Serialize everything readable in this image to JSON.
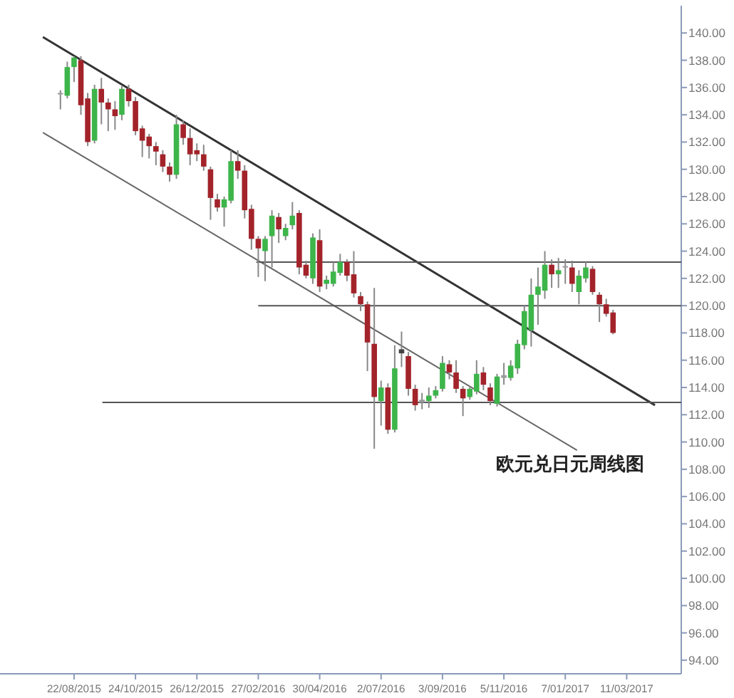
{
  "chart_data": {
    "type": "candlestick",
    "annotations": [
      "欧元兑日元周线图"
    ],
    "x": [
      "2015-08-08",
      "2015-08-15",
      "2015-08-22",
      "2015-08-29",
      "2015-09-05",
      "2015-09-12",
      "2015-09-19",
      "2015-09-26",
      "2015-10-03",
      "2015-10-10",
      "2015-10-17",
      "2015-10-24",
      "2015-10-31",
      "2015-11-07",
      "2015-11-14",
      "2015-11-21",
      "2015-11-28",
      "2015-12-05",
      "2015-12-12",
      "2015-12-19",
      "2015-12-26",
      "2016-01-02",
      "2016-01-09",
      "2016-01-16",
      "2016-01-23",
      "2016-01-30",
      "2016-02-06",
      "2016-02-13",
      "2016-02-20",
      "2016-02-27",
      "2016-03-05",
      "2016-03-12",
      "2016-03-19",
      "2016-03-26",
      "2016-04-02",
      "2016-04-09",
      "2016-04-16",
      "2016-04-23",
      "2016-04-30",
      "2016-05-07",
      "2016-05-14",
      "2016-05-21",
      "2016-05-28",
      "2016-06-04",
      "2016-06-11",
      "2016-06-18",
      "2016-06-25",
      "2016-07-02",
      "2016-07-09",
      "2016-07-16",
      "2016-07-23",
      "2016-07-30",
      "2016-08-06",
      "2016-08-13",
      "2016-08-20",
      "2016-08-27",
      "2016-09-03",
      "2016-09-10",
      "2016-09-17",
      "2016-09-24",
      "2016-10-01",
      "2016-10-08",
      "2016-10-15",
      "2016-10-22",
      "2016-10-29",
      "2016-11-05",
      "2016-11-12",
      "2016-11-19",
      "2016-11-26",
      "2016-12-03",
      "2016-12-10",
      "2016-12-17",
      "2016-12-24",
      "2016-12-31",
      "2017-01-07",
      "2017-01-14",
      "2017-01-21",
      "2017-01-28",
      "2017-02-04",
      "2017-02-11",
      "2017-02-18",
      "2017-02-25"
    ],
    "ohlc": [
      [
        135.5,
        135.8,
        134.4,
        135.6
      ],
      [
        135.4,
        137.9,
        135.2,
        137.5
      ],
      [
        137.5,
        138.3,
        136.4,
        138.2
      ],
      [
        138.0,
        138.3,
        134.0,
        134.7
      ],
      [
        135.2,
        135.6,
        131.7,
        132.0
      ],
      [
        132.1,
        136.2,
        131.9,
        135.9
      ],
      [
        135.9,
        136.7,
        133.3,
        134.9
      ],
      [
        134.9,
        135.2,
        132.8,
        134.4
      ],
      [
        134.4,
        135.0,
        132.9,
        133.9
      ],
      [
        134.0,
        136.1,
        133.6,
        135.9
      ],
      [
        135.9,
        136.2,
        134.6,
        135.0
      ],
      [
        135.0,
        135.3,
        132.5,
        132.8
      ],
      [
        133.0,
        133.2,
        130.9,
        132.1
      ],
      [
        132.4,
        132.6,
        130.8,
        131.7
      ],
      [
        131.7,
        132.0,
        130.3,
        131.3
      ],
      [
        131.1,
        131.4,
        129.8,
        130.2
      ],
      [
        130.2,
        130.5,
        129.1,
        129.6
      ],
      [
        129.6,
        134.0,
        129.3,
        133.3
      ],
      [
        133.3,
        133.6,
        131.8,
        132.3
      ],
      [
        132.3,
        133.0,
        130.3,
        131.1
      ],
      [
        131.4,
        131.9,
        130.6,
        131.1
      ],
      [
        131.1,
        131.8,
        129.9,
        130.2
      ],
      [
        130.0,
        130.2,
        126.3,
        127.9
      ],
      [
        127.8,
        128.2,
        126.9,
        127.2
      ],
      [
        127.2,
        128.0,
        125.8,
        127.8
      ],
      [
        127.7,
        131.4,
        127.5,
        130.6
      ],
      [
        130.6,
        131.4,
        129.3,
        129.9
      ],
      [
        129.9,
        130.3,
        126.4,
        127.0
      ],
      [
        127.1,
        127.4,
        124.1,
        124.9
      ],
      [
        124.9,
        125.1,
        122.1,
        124.2
      ],
      [
        124.0,
        125.1,
        121.8,
        124.9
      ],
      [
        125.1,
        127.0,
        122.8,
        126.6
      ],
      [
        126.5,
        126.8,
        124.6,
        125.6
      ],
      [
        125.1,
        126.0,
        124.8,
        125.7
      ],
      [
        125.9,
        127.6,
        125.6,
        126.6
      ],
      [
        126.8,
        127.0,
        122.3,
        122.8
      ],
      [
        123.0,
        123.3,
        122.0,
        122.2
      ],
      [
        122.0,
        125.3,
        121.6,
        125.0
      ],
      [
        124.8,
        125.6,
        121.0,
        121.4
      ],
      [
        121.6,
        122.2,
        121.2,
        121.9
      ],
      [
        121.6,
        123.2,
        121.4,
        122.5
      ],
      [
        122.4,
        123.8,
        122.2,
        123.2
      ],
      [
        123.2,
        123.4,
        121.8,
        122.2
      ],
      [
        122.3,
        124.0,
        120.6,
        120.9
      ],
      [
        120.7,
        121.0,
        119.6,
        120.1
      ],
      [
        120.1,
        120.3,
        115.2,
        117.3
      ],
      [
        117.2,
        121.3,
        109.5,
        113.3
      ],
      [
        113.0,
        114.5,
        111.2,
        114.0
      ],
      [
        114.0,
        114.3,
        110.6,
        110.9
      ],
      [
        110.9,
        117.1,
        110.7,
        115.4
      ],
      [
        116.8,
        118.1,
        115.5,
        116.5
      ],
      [
        116.3,
        116.6,
        113.4,
        113.9
      ],
      [
        113.9,
        114.2,
        112.3,
        112.7
      ],
      [
        112.9,
        113.6,
        112.4,
        113.1
      ],
      [
        113.0,
        114.0,
        112.5,
        113.4
      ],
      [
        113.4,
        114.1,
        113.2,
        113.8
      ],
      [
        113.9,
        116.3,
        113.7,
        115.8
      ],
      [
        115.7,
        116.0,
        114.6,
        115.1
      ],
      [
        115.1,
        116.0,
        113.6,
        113.9
      ],
      [
        113.9,
        114.1,
        111.9,
        113.2
      ],
      [
        113.3,
        114.0,
        113.1,
        113.9
      ],
      [
        113.7,
        116.0,
        113.5,
        115.0
      ],
      [
        115.1,
        115.5,
        113.8,
        114.2
      ],
      [
        114.0,
        114.3,
        112.7,
        113.0
      ],
      [
        112.8,
        115.0,
        112.6,
        114.8
      ],
      [
        114.7,
        115.8,
        114.2,
        114.9
      ],
      [
        114.7,
        116.0,
        114.5,
        115.6
      ],
      [
        115.4,
        117.5,
        115.0,
        117.2
      ],
      [
        117.1,
        120.0,
        116.8,
        119.6
      ],
      [
        118.2,
        122.0,
        117.0,
        120.8
      ],
      [
        120.8,
        122.8,
        118.6,
        121.4
      ],
      [
        121.1,
        124.0,
        120.5,
        123.0
      ],
      [
        123.0,
        123.4,
        121.3,
        122.3
      ],
      [
        122.3,
        123.5,
        121.3,
        122.6
      ],
      [
        122.8,
        123.4,
        121.6,
        122.9
      ],
      [
        122.8,
        123.3,
        121.0,
        121.6
      ],
      [
        121.0,
        122.6,
        120.1,
        122.2
      ],
      [
        122.0,
        123.2,
        121.7,
        122.8
      ],
      [
        122.7,
        122.9,
        120.8,
        121.0
      ],
      [
        120.8,
        121.0,
        118.8,
        120.1
      ],
      [
        120.1,
        120.5,
        119.2,
        119.4
      ],
      [
        119.5,
        119.7,
        117.9,
        118.0
      ]
    ],
    "colors": [
      "#9a9a9a",
      "#3db54a",
      "#3db54a",
      "#a3232a",
      "#a3232a",
      "#3db54a",
      "#a3232a",
      "#a3232a",
      "#a3232a",
      "#3db54a",
      "#a3232a",
      "#a3232a",
      "#a3232a",
      "#a3232a",
      "#a3232a",
      "#a3232a",
      "#a3232a",
      "#3db54a",
      "#a3232a",
      "#a3232a",
      "#a3232a",
      "#a3232a",
      "#a3232a",
      "#a3232a",
      "#3db54a",
      "#3db54a",
      "#a3232a",
      "#a3232a",
      "#a3232a",
      "#a3232a",
      "#3db54a",
      "#3db54a",
      "#a3232a",
      "#3db54a",
      "#3db54a",
      "#a3232a",
      "#a3232a",
      "#3db54a",
      "#a3232a",
      "#3db54a",
      "#3db54a",
      "#3db54a",
      "#a3232a",
      "#a3232a",
      "#a3232a",
      "#a3232a",
      "#a3232a",
      "#3db54a",
      "#a3232a",
      "#3db54a",
      "#444444",
      "#a3232a",
      "#a3232a",
      "#9a9a9a",
      "#3db54a",
      "#3db54a",
      "#3db54a",
      "#a3232a",
      "#a3232a",
      "#a3232a",
      "#3db54a",
      "#3db54a",
      "#a3232a",
      "#a3232a",
      "#3db54a",
      "#9a9a9a",
      "#3db54a",
      "#3db54a",
      "#3db54a",
      "#3db54a",
      "#3db54a",
      "#3db54a",
      "#a3232a",
      "#3db54a",
      "#9a9a9a",
      "#a3232a",
      "#3db54a",
      "#3db54a",
      "#a3232a",
      "#a3232a",
      "#a3232a",
      "#a3232a"
    ],
    "series": [
      {
        "type": "line",
        "color": "#333333",
        "x": [
          "2015-07-21",
          "2017-04-09"
        ],
        "values": [
          139.7,
          112.7
        ]
      },
      {
        "type": "line",
        "color": "#666666",
        "x": [
          "2015-07-21",
          "2017-01-19"
        ],
        "values": [
          132.7,
          109.4
        ]
      },
      {
        "type": "line",
        "color": "#555555",
        "x": [
          "2016-02-25",
          "2017-05-06"
        ],
        "values": [
          123.2,
          123.2
        ]
      },
      {
        "type": "line",
        "color": "#555555",
        "x": [
          "2016-02-27",
          "2017-05-06"
        ],
        "values": [
          120.0,
          120.0
        ]
      },
      {
        "type": "line",
        "color": "#555555",
        "x": [
          "2015-09-20",
          "2017-05-06"
        ],
        "values": [
          112.9,
          112.9
        ]
      }
    ],
    "xlim": [
      "2015-06-07",
      "2017-05-06"
    ],
    "xticks": [
      {
        "value": "2015-08-22",
        "label": "22/08/2015"
      },
      {
        "value": "2015-10-24",
        "label": "24/10/2015"
      },
      {
        "value": "2015-12-26",
        "label": "26/12/2015"
      },
      {
        "value": "2016-02-27",
        "label": "27/02/2016"
      },
      {
        "value": "2016-04-30",
        "label": "30/04/2016"
      },
      {
        "value": "2016-07-02",
        "label": "2/07/2016"
      },
      {
        "value": "2016-09-03",
        "label": "3/09/2016"
      },
      {
        "value": "2016-11-05",
        "label": "5/11/2016"
      },
      {
        "value": "2017-01-07",
        "label": "7/01/2017"
      },
      {
        "value": "2017-03-11",
        "label": "11/03/2017"
      }
    ],
    "ylim": [
      93,
      142
    ],
    "yticks": [
      {
        "value": 94,
        "label": "94.00"
      },
      {
        "value": 96,
        "label": "96.00"
      },
      {
        "value": 98,
        "label": "98.00"
      },
      {
        "value": 100,
        "label": "100.00"
      },
      {
        "value": 102,
        "label": "102.00"
      },
      {
        "value": 104,
        "label": "104.00"
      },
      {
        "value": 106,
        "label": "106.00"
      },
      {
        "value": 108,
        "label": "108.00"
      },
      {
        "value": 110,
        "label": "110.00"
      },
      {
        "value": 112,
        "label": "112.00"
      },
      {
        "value": 114,
        "label": "114.00"
      },
      {
        "value": 116,
        "label": "116.00"
      },
      {
        "value": 118,
        "label": "118.00"
      },
      {
        "value": 120,
        "label": "120.00"
      },
      {
        "value": 122,
        "label": "122.00"
      },
      {
        "value": 124,
        "label": "124.00"
      },
      {
        "value": 126,
        "label": "126.00"
      },
      {
        "value": 128,
        "label": "128.00"
      },
      {
        "value": 130,
        "label": "130.00"
      },
      {
        "value": 132,
        "label": "132.00"
      },
      {
        "value": 134,
        "label": "134.00"
      },
      {
        "value": 136,
        "label": "136.00"
      },
      {
        "value": 138,
        "label": "138.00"
      },
      {
        "value": 140,
        "label": "140.00"
      }
    ],
    "grid": false
  }
}
